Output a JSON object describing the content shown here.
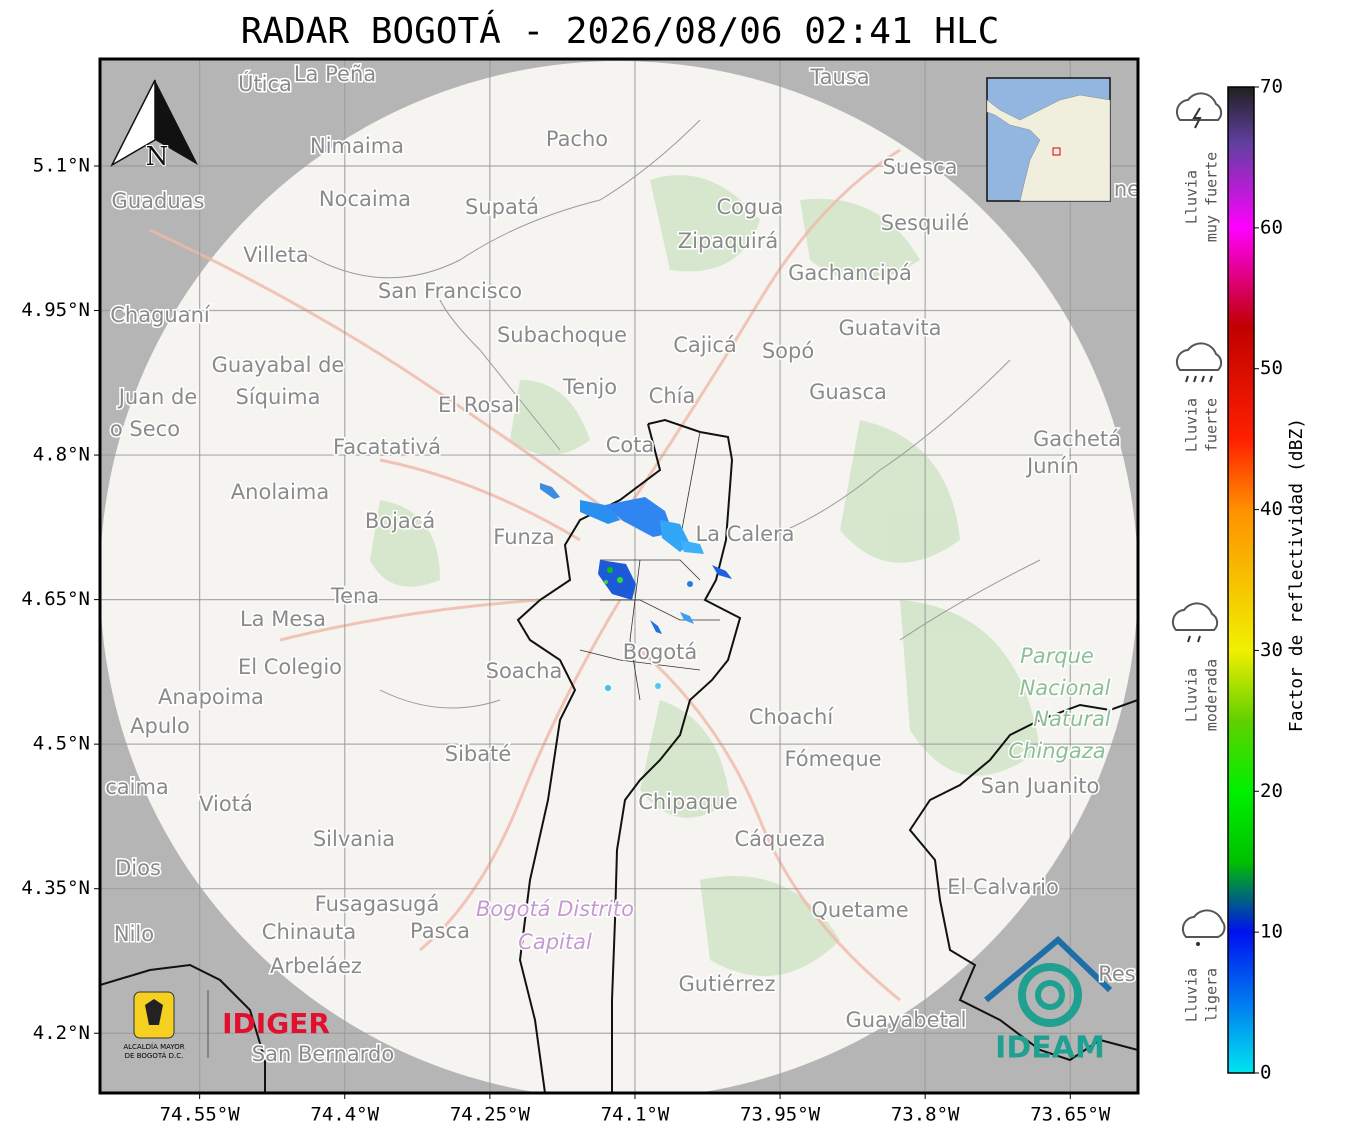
{
  "title": "RADAR BOGOTÁ - 2026/08/06 02:41 HLC",
  "map": {
    "lon_range": [
      -74.653,
      -73.58
    ],
    "lat_range": [
      4.138,
      5.211
    ],
    "lon_ticks": [
      {
        "value": -74.55,
        "label": "74.55°W"
      },
      {
        "value": -74.4,
        "label": "74.4°W"
      },
      {
        "value": -74.25,
        "label": "74.25°W"
      },
      {
        "value": -74.1,
        "label": "74.1°W"
      },
      {
        "value": -73.95,
        "label": "73.95°W"
      },
      {
        "value": -73.8,
        "label": "73.8°W"
      },
      {
        "value": -73.65,
        "label": "73.65°W"
      }
    ],
    "lat_ticks": [
      {
        "value": 5.1,
        "label": "5.1°N"
      },
      {
        "value": 4.95,
        "label": "4.95°N"
      },
      {
        "value": 4.8,
        "label": "4.8°N"
      },
      {
        "value": 4.65,
        "label": "4.65°N"
      },
      {
        "value": 4.5,
        "label": "4.5°N"
      },
      {
        "value": 4.35,
        "label": "4.35°N"
      },
      {
        "value": 4.2,
        "label": "4.2°N"
      }
    ],
    "north_label": "N",
    "places": [
      "Útica",
      "La Peña",
      "Tausa",
      "Pacho",
      "Nimaima",
      "Suesca",
      "Guaduas",
      "Nocaima",
      "Supatá",
      "Cogua",
      "Sesquilé",
      "Zipaquirá",
      "Villeta",
      "Gachancipá",
      "San Francisco",
      "Chaguaní",
      "Guatavita",
      "Subachoque",
      "Cajicá",
      "Sopó",
      "Guayabal de",
      "Síquima",
      "Juan de",
      "Tenjo",
      "Chía",
      "Guasca",
      "El Rosal",
      "o Seco",
      "Facatativá",
      "Cota",
      "Gachetá",
      "Junín",
      "Anolaima",
      "Bojacá",
      "La Calera",
      "Funza",
      "Tena",
      "La Mesa",
      "Soacha",
      "Bogotá",
      "El Colegio",
      "Anapoima",
      "Apulo",
      "Choachí",
      "Sibaté",
      "Fómeque",
      "caima",
      "San Juanito",
      "Viotá",
      "Chipaque",
      "Silvania",
      "Cáqueza",
      "Dios",
      "El Calvario",
      "Fusagasugá",
      "Quetame",
      "Nilo",
      "Chinauta",
      "Pasca",
      "Arbeláez",
      "Gutiérrez",
      "Guayabetal",
      "San Bernardo",
      "Res",
      "ne"
    ],
    "district_labels": [
      "Bogotá Distrito",
      "Capital"
    ],
    "park_labels": [
      "Parque",
      "Nacional",
      "Natural",
      "Chingaza"
    ]
  },
  "colorbar": {
    "label": "Factor de reflectividad (dBZ)",
    "range": [
      0,
      70
    ],
    "ticks": [
      0,
      10,
      20,
      30,
      40,
      50,
      60,
      70
    ],
    "stops": [
      {
        "value": 0,
        "color": "#00e5f0"
      },
      {
        "value": 10,
        "color": "#0010f0"
      },
      {
        "value": 15,
        "color": "#00c000"
      },
      {
        "value": 20,
        "color": "#00f000"
      },
      {
        "value": 25,
        "color": "#60d000"
      },
      {
        "value": 30,
        "color": "#f0f000"
      },
      {
        "value": 40,
        "color": "#ff9000"
      },
      {
        "value": 45,
        "color": "#ff2000"
      },
      {
        "value": 53,
        "color": "#c00000"
      },
      {
        "value": 60,
        "color": "#ff00ff"
      },
      {
        "value": 66,
        "color": "#6040a0"
      },
      {
        "value": 70,
        "color": "#202020"
      }
    ]
  },
  "rain_labels": [
    {
      "lines": [
        "Lluvia",
        "muy fuerte"
      ]
    },
    {
      "lines": [
        "Lluvia",
        "fuerte"
      ]
    },
    {
      "lines": [
        "Lluvia",
        "moderada"
      ]
    },
    {
      "lines": [
        "Lluvia",
        "ligera"
      ]
    }
  ],
  "logos": {
    "alcaldia": [
      "ALCALDÍA MAYOR",
      "DE BOGOTÁ D.C."
    ],
    "idiger": "IDIGER",
    "ideam": "IDEAM"
  }
}
